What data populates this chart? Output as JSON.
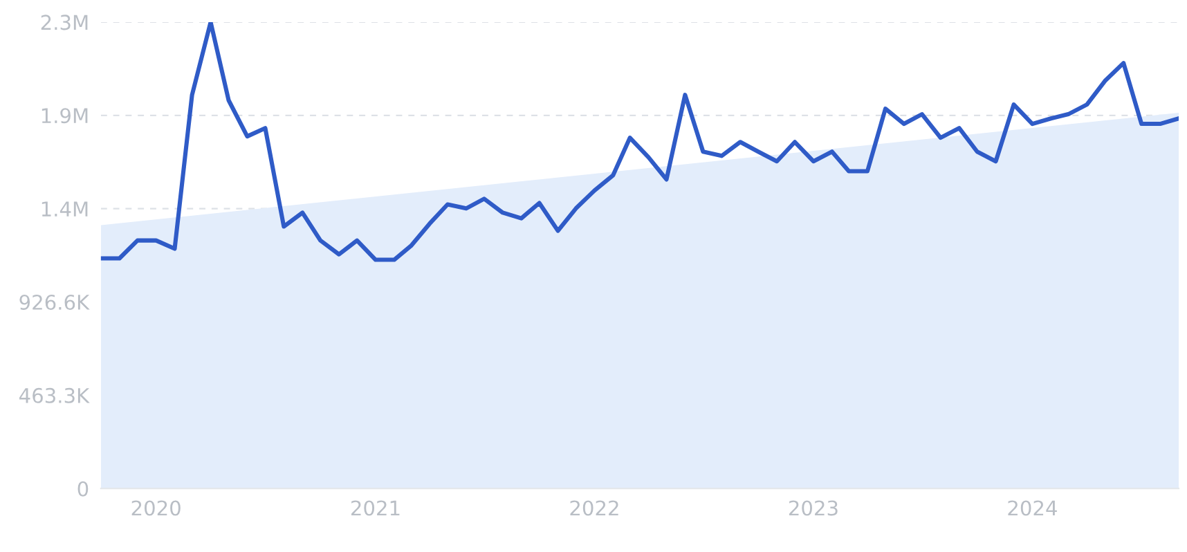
{
  "chart_data": {
    "type": "line",
    "x": [
      "2019-10",
      "2019-11",
      "2019-12",
      "2020-01",
      "2020-02",
      "2020-03",
      "2020-04",
      "2020-05",
      "2020-06",
      "2020-07",
      "2020-08",
      "2020-09",
      "2020-10",
      "2020-11",
      "2020-12",
      "2021-01",
      "2021-02",
      "2021-03",
      "2021-04",
      "2021-05",
      "2021-06",
      "2021-07",
      "2021-08",
      "2021-09",
      "2021-10",
      "2021-11",
      "2021-12",
      "2022-01",
      "2022-02",
      "2022-03",
      "2022-04",
      "2022-05",
      "2022-06",
      "2022-07",
      "2022-08",
      "2022-09",
      "2022-10",
      "2022-11",
      "2022-12",
      "2023-01",
      "2023-02",
      "2023-03",
      "2023-04",
      "2023-05",
      "2023-06",
      "2023-07",
      "2023-08",
      "2023-09",
      "2023-10",
      "2023-11",
      "2023-12",
      "2024-01",
      "2024-02",
      "2024-03",
      "2024-04",
      "2024-05",
      "2024-06",
      "2024-07",
      "2024-08",
      "2024-09"
    ],
    "series": [
      {
        "type": "area",
        "color": "#e3edfb",
        "x": [
          "2019-10",
          "2024-09"
        ],
        "values": [
          1308000,
          1866000
        ]
      },
      {
        "color": "#2f5bc7",
        "values": [
          1143000,
          1143000,
          1232000,
          1232000,
          1191000,
          1955000,
          2316000,
          1928000,
          1749000,
          1790000,
          1301000,
          1370000,
          1232000,
          1163000,
          1232000,
          1136000,
          1136000,
          1205000,
          1315000,
          1411000,
          1391000,
          1439000,
          1370000,
          1342000,
          1418000,
          1280000,
          1391000,
          1480000,
          1556000,
          1742000,
          1645000,
          1535000,
          1955000,
          1673000,
          1652000,
          1721000,
          1673000,
          1625000,
          1721000,
          1625000,
          1673000,
          1576000,
          1576000,
          1886000,
          1811000,
          1859000,
          1742000,
          1790000,
          1673000,
          1625000,
          1907000,
          1811000,
          1838000,
          1859000,
          1907000,
          2024000,
          2113000,
          1811000,
          1811000,
          1838000
        ]
      }
    ],
    "xlim": [
      "2019-10",
      "2024-09"
    ],
    "xticks": [
      {
        "value": "2020-01",
        "label": "2020"
      },
      {
        "value": "2021-01",
        "label": "2021"
      },
      {
        "value": "2022-01",
        "label": "2022"
      },
      {
        "value": "2023-01",
        "label": "2023"
      },
      {
        "value": "2024-01",
        "label": "2024"
      }
    ],
    "ylim": [
      0,
      2316500
    ],
    "yticks": [
      0,
      {
        "value": 463300,
        "label": "463.3K"
      },
      {
        "value": 926600,
        "label": "926.6K"
      },
      {
        "value": 1389900,
        "label": "1.4M"
      },
      {
        "value": 1853200,
        "label": "1.9M"
      },
      {
        "value": 2316500,
        "label": "2.3M"
      }
    ],
    "grid": "y"
  }
}
